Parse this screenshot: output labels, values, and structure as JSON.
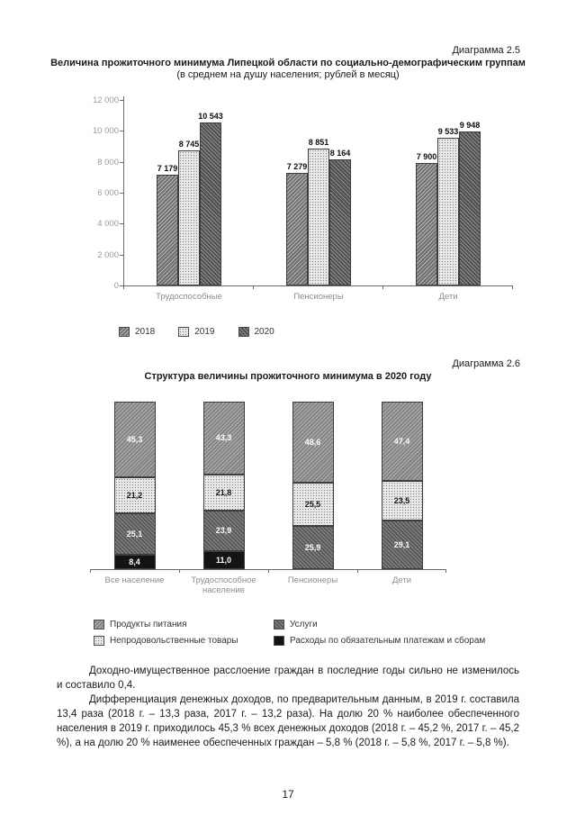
{
  "page_number": "17",
  "diagram1": {
    "caption": "Диаграмма 2.5",
    "title": "Величина прожиточного минимума Липецкой области по социально-демографическим группам",
    "subtitle": "(в среднем на душу населения; рублей в месяц)"
  },
  "diagram2": {
    "caption": "Диаграмма 2.6",
    "title": "Структура величины прожиточного минимума в 2020 году"
  },
  "paragraphs": [
    "Доходно-имущественное расслоение граждан в последние годы сильно не изменилось и составило 0,4.",
    "Дифференциация денежных доходов, по предварительным данным, в 2019 г. составила 13,4 раза (2018 г. – 13,3 раза, 2017 г. – 13,2 раза). На долю 20 % наиболее обеспеченного населения в 2019 г. приходилось 45,3 % всех денежных доходов (2018 г. – 45,2 %, 2017 г. – 45,2 %), а на долю 20 % наименее обеспеченных граждан – 5,8 % (2018 г. – 5,8 %, 2017 г. – 5,8 %)."
  ],
  "chart_data": [
    {
      "type": "bar",
      "title": "Величина прожиточного минимума Липецкой области по социально-демографическим группам",
      "subtitle": "(в среднем на душу населения; рублей в месяц)",
      "categories": [
        "Трудоспособные",
        "Пенсионеры",
        "Дети"
      ],
      "series": [
        {
          "name": "2018",
          "pattern": "h1",
          "color": "#6e6e6e",
          "values": [
            7179,
            7279,
            7900
          ]
        },
        {
          "name": "2019",
          "pattern": "dots",
          "color": "#e8e8e8",
          "values": [
            8745,
            8851,
            9533
          ]
        },
        {
          "name": "2020",
          "pattern": "h2",
          "color": "#4e4e4e",
          "values": [
            10543,
            8164,
            9948
          ]
        }
      ],
      "value_labels": [
        [
          "7 179",
          "8 745",
          "10 543"
        ],
        [
          "7 279",
          "8 851",
          "8 164"
        ],
        [
          "7 900",
          "9 533",
          "9 948"
        ]
      ],
      "ylim": [
        0,
        12000
      ],
      "yticks": [
        "0",
        "2 000",
        "4 000",
        "6 000",
        "8 000",
        "10 000",
        "12 000"
      ],
      "legend_position": "bottom",
      "grid": false
    },
    {
      "type": "bar",
      "stacked": true,
      "unit": "percent",
      "title": "Структура величины прожиточного минимума в 2020 году",
      "categories": [
        "Все население",
        "Трудоспособное население",
        "Пенсионеры",
        "Дети"
      ],
      "series": [
        {
          "name": "Расходы по обязательным платежам и сборам",
          "pattern": "black",
          "color": "#141414",
          "values": [
            8.4,
            11.0,
            0,
            0
          ],
          "labels": [
            "8,4",
            "11,0",
            "",
            ""
          ]
        },
        {
          "name": "Услуги",
          "pattern": "serv",
          "color": "#585858",
          "values": [
            25.1,
            23.9,
            25.9,
            29.1
          ],
          "labels": [
            "25,1",
            "23,9",
            "25,9",
            "29,1"
          ]
        },
        {
          "name": "Непродовольственные товары",
          "pattern": "dots",
          "color": "#e8e8e8",
          "values": [
            21.2,
            21.8,
            25.5,
            23.5
          ],
          "labels": [
            "21,2",
            "21,8",
            "25,5",
            "23,5"
          ]
        },
        {
          "name": "Продукты питания",
          "pattern": "food",
          "color": "#828282",
          "values": [
            45.3,
            43.3,
            48.6,
            47.4
          ],
          "labels": [
            "45,3",
            "43,3",
            "48,6",
            "47,4"
          ]
        }
      ],
      "legend_order": [
        3,
        1,
        2,
        0
      ],
      "ylim": [
        0,
        100
      ],
      "legend_position": "bottom",
      "grid": false
    }
  ]
}
